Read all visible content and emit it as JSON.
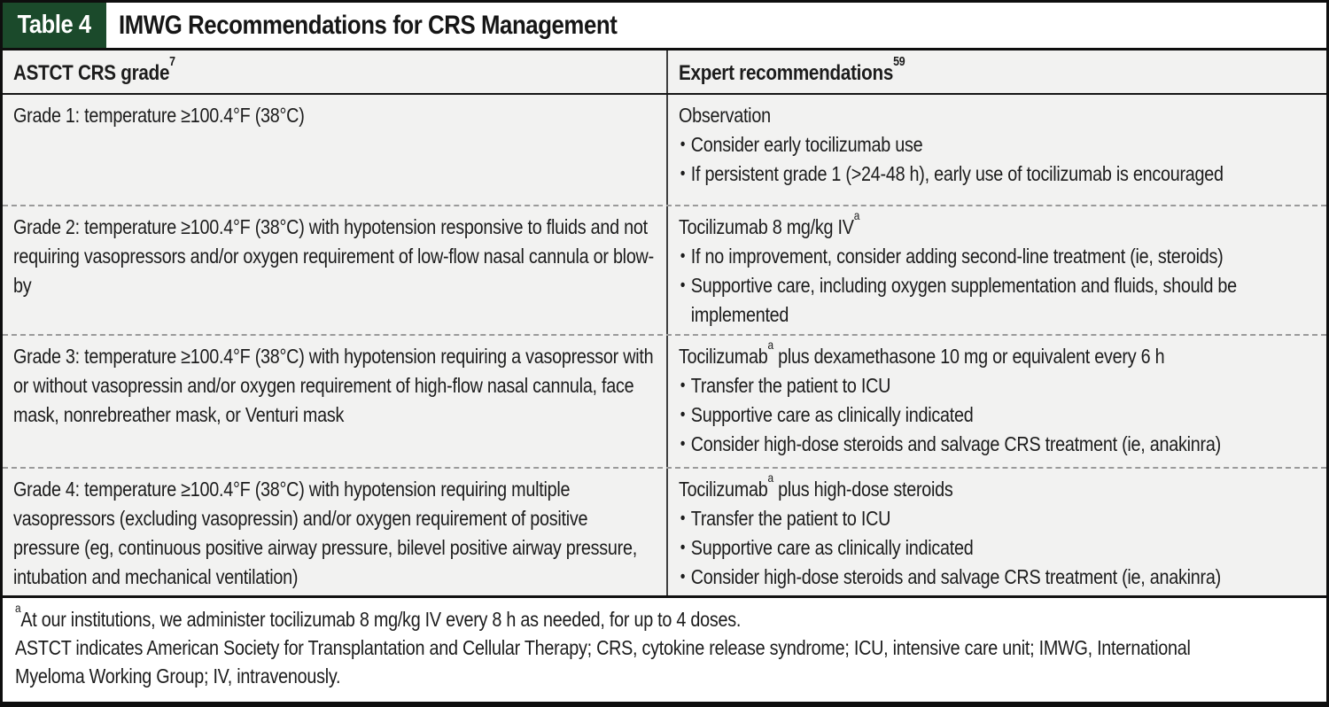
{
  "title_bar": {
    "label": "Table 4",
    "title": "IMWG Recommendations for CRS Management"
  },
  "header": {
    "col1": {
      "label": "ASTCT CRS grade",
      "sup": "7"
    },
    "col2": {
      "label": "Expert recommendations",
      "sup": "59"
    }
  },
  "rows": [
    {
      "grade": "Grade 1: temperature ≥100.4°F (38°C)",
      "rec": {
        "lead_pre": "Observation",
        "lead_sup": "",
        "lead_post": ""
      },
      "bullets": [
        "Consider early tocilizumab use",
        "If persistent grade 1 (>24-48 h), early use of tocilizumab is encouraged"
      ]
    },
    {
      "grade": "Grade 2: temperature ≥100.4°F (38°C) with hypotension responsive to fluids and not requiring vasopressors and/or oxygen requirement of low-flow nasal cannula or blow-by",
      "rec": {
        "lead_pre": "Tocilizumab 8 mg/kg IV",
        "lead_sup": "a",
        "lead_post": ""
      },
      "bullets": [
        "If no improvement, consider adding second-line treatment (ie, steroids)",
        "Supportive care, including oxygen supplementation and fluids, should be implemented"
      ]
    },
    {
      "grade": "Grade 3: temperature ≥100.4°F (38°C) with hypotension requiring a vasopressor with or without vasopressin and/or oxygen requirement of high-flow nasal cannula, face mask, nonrebreather mask, or Venturi mask",
      "rec": {
        "lead_pre": "Tocilizumab",
        "lead_sup": "a",
        "lead_post": " plus dexamethasone 10 mg or equivalent every 6 h"
      },
      "bullets": [
        "Transfer the patient to ICU",
        "Supportive care as clinically indicated",
        "Consider high-dose steroids and salvage CRS treatment (ie, anakinra)"
      ]
    },
    {
      "grade": "Grade 4: temperature ≥100.4°F (38°C) with hypotension requiring multiple vasopressors (excluding vasopressin) and/or oxygen requirement of positive pressure (eg, continuous positive airway pressure, bilevel positive airway pressure, intubation and mechanical ventilation)",
      "rec": {
        "lead_pre": "Tocilizumab",
        "lead_sup": "a",
        "lead_post": " plus high-dose steroids"
      },
      "bullets": [
        "Transfer the patient to ICU",
        "Supportive care as clinically indicated",
        "Consider high-dose steroids and salvage CRS treatment (ie, anakinra)"
      ]
    }
  ],
  "footnotes": {
    "note1_sup": "a",
    "note1": "At our institutions, we administer tocilizumab 8 mg/kg IV every 8 h as needed, for up to 4 doses.",
    "note2": "ASTCT indicates American Society for Transplantation and Cellular Therapy; CRS, cytokine release syndrome; ICU, intensive care unit; IMWG, International Myeloma Working Group; IV, intravenously."
  },
  "colors": {
    "accent_green": "#1b4a2b",
    "row_background": "#f2f2f1"
  }
}
